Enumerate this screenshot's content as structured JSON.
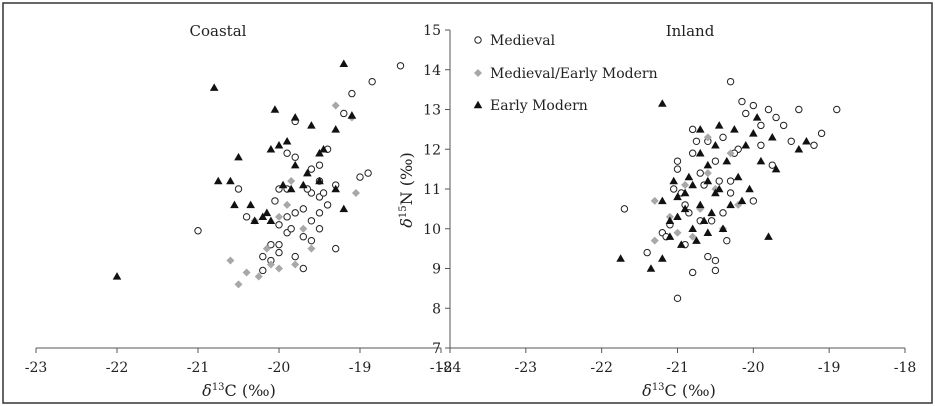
{
  "chart_data": [
    {
      "type": "scatter",
      "title": "Coastal",
      "xlabel": "δ13C (‰)",
      "xlim": [
        -23,
        -18
      ],
      "ylim": [
        7,
        15
      ],
      "xticks": [
        "-23",
        "-22",
        "-21",
        "-20",
        "-19",
        "-18"
      ],
      "series": [
        {
          "name": "Medieval",
          "marker": "circle-open",
          "points": [
            [
              -21.0,
              9.95
            ],
            [
              -20.5,
              11.0
            ],
            [
              -20.4,
              10.3
            ],
            [
              -20.2,
              8.95
            ],
            [
              -20.2,
              9.3
            ],
            [
              -20.1,
              9.6
            ],
            [
              -20.1,
              9.2
            ],
            [
              -20.0,
              10.1
            ],
            [
              -20.0,
              11.0
            ],
            [
              -20.0,
              9.6
            ],
            [
              -20.0,
              9.4
            ],
            [
              -19.9,
              10.3
            ],
            [
              -19.9,
              9.9
            ],
            [
              -19.9,
              11.0
            ],
            [
              -19.9,
              11.9
            ],
            [
              -19.8,
              12.7
            ],
            [
              -19.8,
              10.4
            ],
            [
              -19.8,
              9.3
            ],
            [
              -19.8,
              11.8
            ],
            [
              -19.7,
              10.5
            ],
            [
              -19.7,
              9.8
            ],
            [
              -19.7,
              9.0
            ],
            [
              -19.6,
              10.9
            ],
            [
              -19.6,
              10.2
            ],
            [
              -19.6,
              11.5
            ],
            [
              -19.6,
              9.7
            ],
            [
              -19.5,
              11.2
            ],
            [
              -19.5,
              10.4
            ],
            [
              -19.5,
              10.0
            ],
            [
              -19.5,
              11.6
            ],
            [
              -19.5,
              10.8
            ],
            [
              -19.4,
              12.0
            ],
            [
              -19.4,
              10.6
            ],
            [
              -19.3,
              11.1
            ],
            [
              -19.3,
              9.5
            ],
            [
              -19.2,
              12.9
            ],
            [
              -19.1,
              13.4
            ],
            [
              -19.0,
              11.3
            ],
            [
              -18.9,
              11.4
            ],
            [
              -18.85,
              13.7
            ],
            [
              -18.5,
              14.1
            ],
            [
              -20.05,
              10.7
            ],
            [
              -19.85,
              10.0
            ],
            [
              -19.65,
              11.0
            ],
            [
              -19.45,
              10.9
            ]
          ]
        },
        {
          "name": "Medieval/Early Modern",
          "marker": "diamond",
          "points": [
            [
              -20.6,
              9.2
            ],
            [
              -20.5,
              8.6
            ],
            [
              -20.4,
              8.9
            ],
            [
              -20.3,
              10.2
            ],
            [
              -20.25,
              8.8
            ],
            [
              -20.1,
              9.1
            ],
            [
              -20.0,
              9.0
            ],
            [
              -20.0,
              10.3
            ],
            [
              -19.9,
              10.6
            ],
            [
              -19.85,
              11.2
            ],
            [
              -19.8,
              9.1
            ],
            [
              -19.7,
              10.0
            ],
            [
              -19.6,
              9.5
            ],
            [
              -19.3,
              13.1
            ],
            [
              -19.1,
              12.8
            ],
            [
              -19.05,
              10.9
            ],
            [
              -20.15,
              9.5
            ]
          ]
        },
        {
          "name": "Early Modern",
          "marker": "triangle",
          "points": [
            [
              -22.0,
              8.8
            ],
            [
              -20.8,
              13.55
            ],
            [
              -20.75,
              11.2
            ],
            [
              -20.6,
              11.2
            ],
            [
              -20.55,
              10.6
            ],
            [
              -20.5,
              11.8
            ],
            [
              -20.35,
              10.6
            ],
            [
              -20.3,
              10.2
            ],
            [
              -20.2,
              10.3
            ],
            [
              -20.1,
              10.2
            ],
            [
              -20.1,
              12.0
            ],
            [
              -20.05,
              13.0
            ],
            [
              -20.0,
              12.1
            ],
            [
              -19.95,
              11.1
            ],
            [
              -19.9,
              12.2
            ],
            [
              -19.85,
              11.0
            ],
            [
              -19.8,
              12.8
            ],
            [
              -19.8,
              11.6
            ],
            [
              -19.7,
              11.1
            ],
            [
              -19.6,
              12.6
            ],
            [
              -19.5,
              11.2
            ],
            [
              -19.5,
              11.9
            ],
            [
              -19.45,
              12.0
            ],
            [
              -19.3,
              12.5
            ],
            [
              -19.3,
              11.0
            ],
            [
              -19.2,
              14.15
            ],
            [
              -19.2,
              10.5
            ],
            [
              -19.1,
              12.85
            ],
            [
              -20.15,
              10.4
            ],
            [
              -19.65,
              11.4
            ]
          ]
        }
      ]
    },
    {
      "type": "scatter",
      "title": "Inland",
      "xlabel": "δ13C (‰)",
      "ylabel": "δ15N (‰)",
      "xlim": [
        -24,
        -18
      ],
      "ylim": [
        7,
        15
      ],
      "xticks": [
        "-24",
        "-23",
        "-22",
        "-21",
        "-20",
        "-19",
        "-18"
      ],
      "yticks": [
        "7",
        "8",
        "9",
        "10",
        "11",
        "12",
        "13",
        "14",
        "15"
      ],
      "series": [
        {
          "name": "Medieval",
          "marker": "circle-open",
          "points": [
            [
              -21.7,
              10.5
            ],
            [
              -21.4,
              9.4
            ],
            [
              -21.2,
              9.9
            ],
            [
              -21.1,
              10.1
            ],
            [
              -21.0,
              8.25
            ],
            [
              -21.0,
              11.7
            ],
            [
              -21.0,
              11.5
            ],
            [
              -20.9,
              10.6
            ],
            [
              -20.9,
              9.6
            ],
            [
              -20.8,
              11.9
            ],
            [
              -20.8,
              8.9
            ],
            [
              -20.8,
              12.5
            ],
            [
              -20.7,
              10.2
            ],
            [
              -20.7,
              11.4
            ],
            [
              -20.6,
              12.2
            ],
            [
              -20.6,
              9.3
            ],
            [
              -20.5,
              8.95
            ],
            [
              -20.5,
              11.7
            ],
            [
              -20.5,
              9.2
            ],
            [
              -20.4,
              12.3
            ],
            [
              -20.4,
              10.4
            ],
            [
              -20.3,
              13.7
            ],
            [
              -20.3,
              10.9
            ],
            [
              -20.3,
              11.2
            ],
            [
              -20.2,
              12.0
            ],
            [
              -20.15,
              13.2
            ],
            [
              -20.1,
              12.9
            ],
            [
              -20.0,
              13.1
            ],
            [
              -20.0,
              10.7
            ],
            [
              -19.9,
              12.6
            ],
            [
              -19.9,
              12.1
            ],
            [
              -19.8,
              13.0
            ],
            [
              -19.7,
              12.8
            ],
            [
              -19.6,
              12.6
            ],
            [
              -19.5,
              12.2
            ],
            [
              -19.4,
              13.0
            ],
            [
              -19.2,
              12.1
            ],
            [
              -19.1,
              12.4
            ],
            [
              -18.9,
              13.0
            ],
            [
              -21.05,
              11.0
            ],
            [
              -20.95,
              10.9
            ],
            [
              -20.85,
              10.4
            ],
            [
              -20.75,
              12.2
            ],
            [
              -20.65,
              11.1
            ],
            [
              -20.55,
              10.2
            ],
            [
              -20.45,
              11.2
            ],
            [
              -20.35,
              9.7
            ],
            [
              -21.15,
              9.8
            ],
            [
              -20.25,
              11.9
            ],
            [
              -19.75,
              11.6
            ]
          ]
        },
        {
          "name": "Medieval/Early Modern",
          "marker": "diamond",
          "points": [
            [
              -21.3,
              10.7
            ],
            [
              -21.3,
              9.7
            ],
            [
              -21.0,
              9.9
            ],
            [
              -20.9,
              11.1
            ],
            [
              -20.7,
              10.5
            ],
            [
              -20.6,
              12.3
            ],
            [
              -20.6,
              11.4
            ],
            [
              -20.5,
              11.0
            ],
            [
              -20.4,
              10.0
            ],
            [
              -20.3,
              11.9
            ],
            [
              -20.2,
              10.6
            ],
            [
              -21.1,
              10.3
            ],
            [
              -20.8,
              9.8
            ]
          ]
        },
        {
          "name": "Early Modern",
          "marker": "triangle",
          "points": [
            [
              -21.75,
              9.25
            ],
            [
              -21.35,
              9.0
            ],
            [
              -21.2,
              13.15
            ],
            [
              -21.2,
              9.25
            ],
            [
              -21.2,
              10.7
            ],
            [
              -21.1,
              10.2
            ],
            [
              -21.1,
              9.8
            ],
            [
              -21.0,
              10.8
            ],
            [
              -21.0,
              10.3
            ],
            [
              -20.95,
              9.6
            ],
            [
              -20.9,
              10.5
            ],
            [
              -20.85,
              11.3
            ],
            [
              -20.8,
              10.0
            ],
            [
              -20.8,
              11.1
            ],
            [
              -20.75,
              9.7
            ],
            [
              -20.7,
              11.9
            ],
            [
              -20.7,
              10.6
            ],
            [
              -20.7,
              12.5
            ],
            [
              -20.65,
              10.2
            ],
            [
              -20.6,
              11.6
            ],
            [
              -20.6,
              11.2
            ],
            [
              -20.55,
              10.4
            ],
            [
              -20.5,
              12.1
            ],
            [
              -20.5,
              10.9
            ],
            [
              -20.45,
              11.0
            ],
            [
              -20.4,
              10.0
            ],
            [
              -20.35,
              11.7
            ],
            [
              -20.3,
              10.6
            ],
            [
              -20.25,
              12.5
            ],
            [
              -20.2,
              11.3
            ],
            [
              -20.15,
              10.7
            ],
            [
              -20.1,
              12.1
            ],
            [
              -20.05,
              11.0
            ],
            [
              -20.0,
              12.4
            ],
            [
              -19.95,
              12.8
            ],
            [
              -19.9,
              11.7
            ],
            [
              -19.8,
              9.8
            ],
            [
              -19.75,
              12.3
            ],
            [
              -19.7,
              11.5
            ],
            [
              -19.4,
              12.0
            ],
            [
              -19.3,
              12.2
            ],
            [
              -20.6,
              9.9
            ],
            [
              -20.9,
              10.9
            ],
            [
              -21.05,
              11.2
            ],
            [
              -20.45,
              12.6
            ]
          ]
        }
      ]
    }
  ]
}
